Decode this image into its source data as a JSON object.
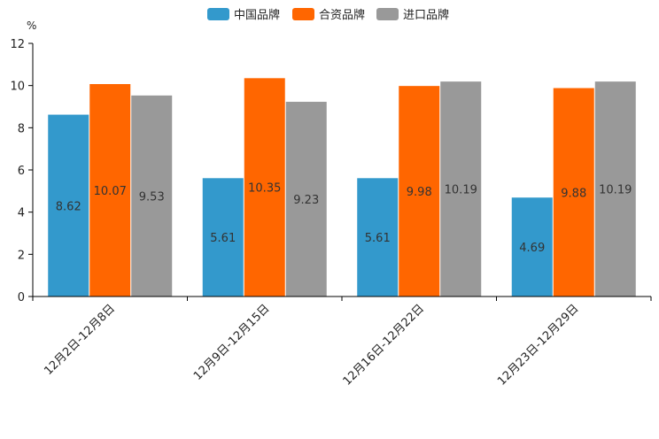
{
  "chart_data": {
    "type": "bar",
    "title": "",
    "xlabel": "",
    "ylabel": "%",
    "ylim": [
      0,
      12
    ],
    "yticks": [
      0,
      2,
      4,
      6,
      8,
      10,
      12
    ],
    "grid": false,
    "legend_position": "top-center",
    "categories": [
      "12月2日-12月8日",
      "12月9日-12月15日",
      "12月16日-12月22日",
      "12月23日-12月29日"
    ],
    "series": [
      {
        "name": "中国品牌",
        "color": "#3399CC",
        "values": [
          8.62,
          5.61,
          5.61,
          4.69
        ],
        "labels": [
          "8.62",
          "5.61",
          "5.61",
          "4.69"
        ]
      },
      {
        "name": "合资品牌",
        "color": "#FF6600",
        "values": [
          10.07,
          10.35,
          9.98,
          9.88
        ],
        "labels": [
          "10.07",
          "10.35",
          "9.98",
          "9.88"
        ]
      },
      {
        "name": "进口品牌",
        "color": "#999999",
        "values": [
          9.53,
          9.23,
          10.19,
          10.19
        ],
        "labels": [
          "9.53",
          "9.23",
          "10.19",
          "10.19"
        ]
      }
    ]
  }
}
